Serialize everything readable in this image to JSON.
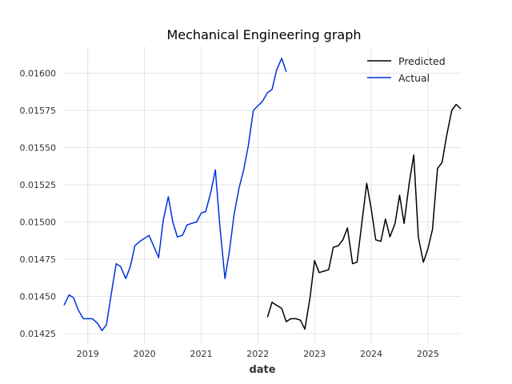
{
  "chart_data": {
    "type": "line",
    "title": "Mechanical Engineering graph",
    "xlabel": "date",
    "ylabel": "",
    "xlim": [
      2018.58,
      2025.58
    ],
    "ylim": [
      0.01418,
      0.01618
    ],
    "grid": true,
    "legend_position": "top-right",
    "x_ticks": [
      2019,
      2020,
      2021,
      2022,
      2023,
      2024,
      2025
    ],
    "x_tick_labels": [
      "2019",
      "2020",
      "2021",
      "2022",
      "2023",
      "2024",
      "2025"
    ],
    "y_ticks": [
      0.01425,
      0.0145,
      0.01475,
      0.015,
      0.01525,
      0.0155,
      0.01575,
      0.016
    ],
    "y_tick_labels": [
      "0.01425",
      "0.01450",
      "0.01475",
      "0.01500",
      "0.01525",
      "0.01550",
      "0.01575",
      "0.01600"
    ],
    "series": [
      {
        "name": "Predicted",
        "color": "#000000",
        "x": [
          2022.17,
          2022.25,
          2022.33,
          2022.42,
          2022.5,
          2022.58,
          2022.67,
          2022.75,
          2022.83,
          2022.92,
          2023.0,
          2023.08,
          2023.17,
          2023.25,
          2023.33,
          2023.42,
          2023.5,
          2023.58,
          2023.67,
          2023.75,
          2023.83,
          2023.92,
          2024.0,
          2024.08,
          2024.17,
          2024.25,
          2024.33,
          2024.42,
          2024.5,
          2024.58,
          2024.67,
          2024.75,
          2024.83,
          2024.92,
          2025.0,
          2025.08,
          2025.17,
          2025.25,
          2025.33,
          2025.42,
          2025.5,
          2025.58
        ],
        "y": [
          0.01436,
          0.01446,
          0.01444,
          0.01442,
          0.01433,
          0.01435,
          0.01435,
          0.01434,
          0.01428,
          0.01449,
          0.01474,
          0.01466,
          0.01467,
          0.01468,
          0.01483,
          0.01484,
          0.01488,
          0.01496,
          0.01472,
          0.01473,
          0.01498,
          0.01526,
          0.01509,
          0.01488,
          0.01487,
          0.01502,
          0.0149,
          0.01499,
          0.01518,
          0.01499,
          0.01526,
          0.01545,
          0.0149,
          0.01473,
          0.01482,
          0.01495,
          0.01536,
          0.0154,
          0.01558,
          0.01575,
          0.01579,
          0.01576
        ]
      },
      {
        "name": "Actual",
        "color": "#0033dd",
        "x": [
          2018.58,
          2018.67,
          2018.75,
          2018.83,
          2018.92,
          2019.0,
          2019.08,
          2019.17,
          2019.25,
          2019.33,
          2019.42,
          2019.5,
          2019.58,
          2019.67,
          2019.75,
          2019.83,
          2019.92,
          2020.0,
          2020.08,
          2020.17,
          2020.25,
          2020.33,
          2020.42,
          2020.5,
          2020.58,
          2020.67,
          2020.75,
          2020.83,
          2020.92,
          2021.0,
          2021.08,
          2021.17,
          2021.25,
          2021.33,
          2021.42,
          2021.5,
          2021.58,
          2021.67,
          2021.75,
          2021.83,
          2021.92,
          2022.0,
          2022.08,
          2022.17,
          2022.25,
          2022.33,
          2022.42,
          2022.5
        ],
        "y": [
          0.01444,
          0.01451,
          0.01449,
          0.01441,
          0.01435,
          0.01435,
          0.01435,
          0.01432,
          0.01427,
          0.01431,
          0.01453,
          0.01472,
          0.0147,
          0.01462,
          0.0147,
          0.01484,
          0.01487,
          0.01489,
          0.01491,
          0.01483,
          0.01476,
          0.01501,
          0.01517,
          0.015,
          0.0149,
          0.01491,
          0.01498,
          0.01499,
          0.015,
          0.01506,
          0.01507,
          0.0152,
          0.01535,
          0.01497,
          0.01462,
          0.01481,
          0.01505,
          0.01523,
          0.01535,
          0.01551,
          0.01575,
          0.01578,
          0.01581,
          0.01587,
          0.01589,
          0.01602,
          0.0161,
          0.01601
        ]
      }
    ]
  }
}
